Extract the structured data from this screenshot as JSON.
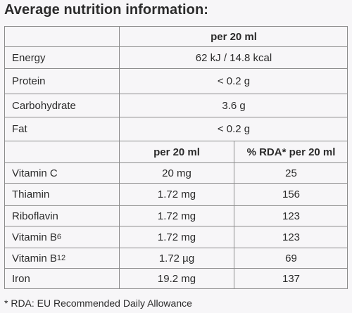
{
  "title": "Average nutrition information:",
  "upper": {
    "header": "per 20 ml",
    "rows": [
      {
        "label": "Energy",
        "value": "62 kJ / 14.8 kcal"
      },
      {
        "label": "Protein",
        "value": "< 0.2 g"
      },
      {
        "label": "Carbohydrate",
        "value": "3.6 g"
      },
      {
        "label": "Fat",
        "value": "< 0.2 g"
      }
    ]
  },
  "lower": {
    "header_col1": "per 20 ml",
    "header_col2": "% RDA* per 20 ml",
    "rows": [
      {
        "label": "Vitamin C",
        "label_sub": "",
        "value": "20 mg",
        "rda": "25"
      },
      {
        "label": "Thiamin",
        "label_sub": "",
        "value": "1.72 mg",
        "rda": "156"
      },
      {
        "label": "Riboflavin",
        "label_sub": "",
        "value": "1.72 mg",
        "rda": "123"
      },
      {
        "label": "Vitamin B",
        "label_sub": "6",
        "value": "1.72 mg",
        "rda": "123"
      },
      {
        "label": "Vitamin B",
        "label_sub": "12",
        "value": "1.72 µg",
        "rda": "69"
      },
      {
        "label": "Iron",
        "label_sub": "",
        "value": "19.2 mg",
        "rda": "137"
      }
    ]
  },
  "footnote": "* RDA: EU Recommended Daily Allowance"
}
